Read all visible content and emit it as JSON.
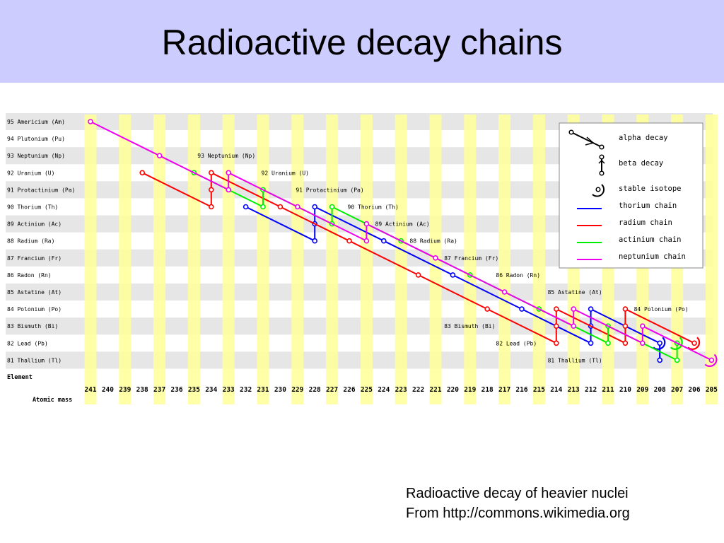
{
  "slide": {
    "title": "Radioactive decay chains",
    "caption_line1": "Radioactive decay of heavier nuclei",
    "caption_line2": "From http://commons.wikimedia.org"
  },
  "diagram": {
    "elements": [
      {
        "z": 95,
        "label": "95 Americium (Am)",
        "symbol": "Am"
      },
      {
        "z": 94,
        "label": "94 Plutonium (Pu)",
        "symbol": "Pu"
      },
      {
        "z": 93,
        "label": "93 Neptunium (Np)",
        "symbol": "Np"
      },
      {
        "z": 92,
        "label": "92 Uranium (U)",
        "symbol": "U"
      },
      {
        "z": 91,
        "label": "91 Protactinium (Pa)",
        "symbol": "Pa"
      },
      {
        "z": 90,
        "label": "90 Thorium (Th)",
        "symbol": "Th"
      },
      {
        "z": 89,
        "label": "89 Actinium (Ac)",
        "symbol": "Ac"
      },
      {
        "z": 88,
        "label": "88 Radium (Ra)",
        "symbol": "Ra"
      },
      {
        "z": 87,
        "label": "87 Francium (Fr)",
        "symbol": "Fr"
      },
      {
        "z": 86,
        "label": "86 Radon (Rn)",
        "symbol": "Rn"
      },
      {
        "z": 85,
        "label": "85 Astatine (At)",
        "symbol": "At"
      },
      {
        "z": 84,
        "label": "84 Polonium (Po)",
        "symbol": "Po"
      },
      {
        "z": 83,
        "label": "83 Bismuth (Bi)",
        "symbol": "Bi"
      },
      {
        "z": 82,
        "label": "82 Lead (Pb)",
        "symbol": "Pb"
      },
      {
        "z": 81,
        "label": "81 Thallium (Tl)",
        "symbol": "Tl"
      }
    ],
    "masses": [
      241,
      240,
      239,
      238,
      237,
      236,
      235,
      234,
      233,
      232,
      231,
      230,
      229,
      228,
      227,
      226,
      225,
      224,
      223,
      222,
      221,
      220,
      219,
      218,
      217,
      216,
      215,
      214,
      213,
      212,
      211,
      210,
      209,
      208,
      207,
      206,
      205
    ],
    "corner_element_label": "Element",
    "corner_mass_label": "Atomic mass",
    "inline_labels": [
      {
        "text": "93 Neptunium (Np)",
        "z": 93,
        "a": 234.8
      },
      {
        "text": "92 Uranium (U)",
        "z": 92,
        "a": 231.1
      },
      {
        "text": "91 Protactinium (Pa)",
        "z": 91,
        "a": 229.1
      },
      {
        "text": "90 Thorium (Th)",
        "z": 90,
        "a": 226.1
      },
      {
        "text": "89 Actinium (Ac)",
        "z": 89,
        "a": 224.5
      },
      {
        "text": "88 Radium (Ra)",
        "z": 88,
        "a": 222.5
      },
      {
        "text": "87 Francium (Fr)",
        "z": 87,
        "a": 220.5
      },
      {
        "text": "86 Radon (Rn)",
        "z": 86,
        "a": 217.5
      },
      {
        "text": "85 Astatine (At)",
        "z": 85,
        "a": 214.5
      },
      {
        "text": "84 Polonium (Po)",
        "z": 84,
        "a": 209.5
      },
      {
        "text": "83 Bismuth (Bi)",
        "z": 83,
        "a": 220.5
      },
      {
        "text": "82 Lead (Pb)",
        "z": 82,
        "a": 217.5
      },
      {
        "text": "81 Thallium (Tl)",
        "z": 81,
        "a": 214.5
      }
    ],
    "legend": {
      "alpha": "alpha decay",
      "beta": "beta decay",
      "stable": "stable isotope",
      "thorium": "thorium chain",
      "radium": "radium chain",
      "actinium": "actinium chain",
      "neptunium": "neptunium chain"
    },
    "colors": {
      "thorium": "#0000ff",
      "radium": "#ff0000",
      "actinium": "#00ee00",
      "neptunium": "#ee00ee",
      "yellow_column": "#ffff99",
      "grey_row": "#e6e6e6"
    },
    "chains": {
      "thorium": [
        [
          90,
          232
        ],
        [
          88,
          228
        ],
        [
          89,
          228
        ],
        [
          90,
          228
        ],
        [
          88,
          224
        ],
        [
          86,
          220
        ],
        [
          84,
          216
        ],
        [
          82,
          212
        ],
        [
          83,
          212
        ],
        [
          84,
          212
        ],
        [
          82,
          208
        ],
        [
          81,
          208
        ],
        [
          82,
          208
        ]
      ],
      "radium": [
        [
          92,
          238
        ],
        [
          90,
          234
        ],
        [
          91,
          234
        ],
        [
          92,
          234
        ],
        [
          90,
          230
        ],
        [
          88,
          226
        ],
        [
          86,
          222
        ],
        [
          84,
          218
        ],
        [
          82,
          214
        ],
        [
          83,
          214
        ],
        [
          84,
          214
        ],
        [
          82,
          210
        ],
        [
          83,
          210
        ],
        [
          84,
          210
        ],
        [
          82,
          206
        ]
      ],
      "actinium": [
        [
          92,
          235
        ],
        [
          90,
          231
        ],
        [
          91,
          231
        ],
        [
          89,
          227
        ],
        [
          90,
          227
        ],
        [
          88,
          223
        ],
        [
          86,
          219
        ],
        [
          84,
          215
        ],
        [
          82,
          211
        ],
        [
          83,
          211
        ],
        [
          81,
          207
        ],
        [
          82,
          207
        ]
      ],
      "neptunium": [
        [
          95,
          241
        ],
        [
          93,
          237
        ],
        [
          91,
          233
        ],
        [
          92,
          233
        ],
        [
          90,
          229
        ],
        [
          88,
          225
        ],
        [
          89,
          225
        ],
        [
          87,
          221
        ],
        [
          85,
          217
        ],
        [
          83,
          213
        ],
        [
          84,
          213
        ],
        [
          82,
          209
        ],
        [
          83,
          209
        ],
        [
          81,
          205
        ]
      ]
    }
  }
}
